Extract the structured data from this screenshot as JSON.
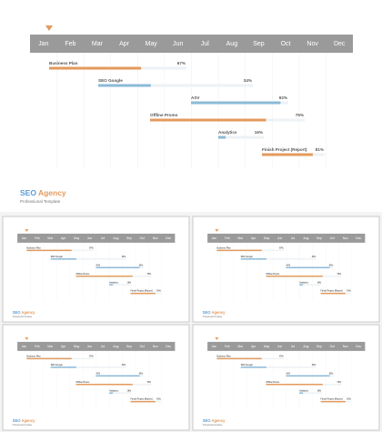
{
  "slide": {
    "months": [
      "Jan",
      "Feb",
      "Mar",
      "Apr",
      "May",
      "Jun",
      "Jul",
      "Aug",
      "Sep",
      "Oct",
      "Nov",
      "Dec"
    ],
    "tasks": [
      {
        "name": "Business Plan",
        "progress": 67,
        "progress_label": "67%",
        "color": "#e39a5d"
      },
      {
        "name": "SEO Google",
        "progress": 34,
        "progress_label": "34%",
        "color": "#8bbad8"
      },
      {
        "name": "ASV",
        "progress": 92,
        "progress_label": "92%",
        "color": "#8bbad8"
      },
      {
        "name": "Offline Promo",
        "progress": 75,
        "progress_label": "75%",
        "color": "#e39a5d"
      },
      {
        "name": "Analytics",
        "progress": 16,
        "progress_label": "16%",
        "color": "#8bbad8"
      },
      {
        "name": "Finish Project (Report)",
        "progress": 81,
        "progress_label": "81%",
        "color": "#e39a5d"
      }
    ],
    "brand_first": "SEO",
    "brand_second": "Agency",
    "subtitle": "Professional Template"
  }
}
